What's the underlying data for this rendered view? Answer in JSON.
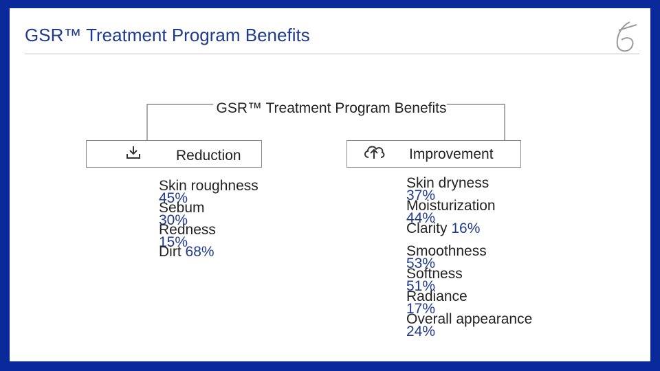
{
  "slide": {
    "title": "GSR™ Treatment Program Benefits"
  },
  "diagram": {
    "root": "GSR™ Treatment Program Benefits",
    "reduction": {
      "label": "Reduction",
      "items": [
        {
          "name": "Skin roughness",
          "value": "45%"
        },
        {
          "name": "Sebum",
          "value": "30%"
        },
        {
          "name": "Redness",
          "value": "15%"
        },
        {
          "name": "Dirt",
          "value": "68%"
        }
      ]
    },
    "improvement": {
      "label": "Improvement",
      "items": [
        {
          "name": "Skin dryness",
          "value": "37%"
        },
        {
          "name": "Moisturization",
          "value": "44%"
        },
        {
          "name": "Clarity",
          "value": "16%"
        },
        {
          "name": "Smoothness",
          "value": "53%"
        },
        {
          "name": "Softness",
          "value": "51%"
        },
        {
          "name": "Radiance",
          "value": "17%"
        },
        {
          "name": "Overall appearance",
          "value": "24%"
        }
      ]
    }
  },
  "icons": {
    "reduction_icon": "download-tray-icon",
    "improvement_icon": "cloud-upload-icon",
    "logo": "brand-logo-icon"
  },
  "colors": {
    "frame": "#0a2a9c",
    "title": "#1e3a8a",
    "value": "#1e3a8a"
  }
}
